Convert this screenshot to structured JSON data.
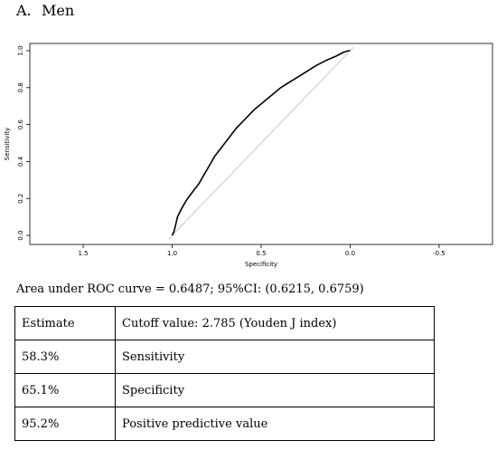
{
  "panel": {
    "letter": "A.",
    "title": "Men"
  },
  "chart_data": {
    "type": "line",
    "xlabel": "Specificity",
    "ylabel": "Sensitivity",
    "xlim": [
      1.8,
      -0.8
    ],
    "ylim": [
      0,
      1
    ],
    "x_ticks": [
      1.5,
      1.0,
      0.5,
      0.0,
      -0.5
    ],
    "x_tick_labels": [
      "1.5",
      "1.0",
      "0.5",
      "0.0",
      "-0.5"
    ],
    "y_ticks": [
      0.0,
      0.2,
      0.4,
      0.6,
      0.8,
      1.0
    ],
    "y_tick_labels": [
      "0.0",
      "0.2",
      "0.4",
      "0.6",
      "0.8",
      "1.0"
    ],
    "grid": false,
    "series": [
      {
        "role": "roc-curve",
        "color": "#000000",
        "specificity": [
          1.0,
          0.99,
          0.98,
          0.97,
          0.95,
          0.92,
          0.89,
          0.85,
          0.82,
          0.79,
          0.76,
          0.72,
          0.68,
          0.64,
          0.59,
          0.54,
          0.49,
          0.44,
          0.39,
          0.34,
          0.29,
          0.24,
          0.19,
          0.13,
          0.08,
          0.04,
          0.01,
          0.0
        ],
        "sensitivity": [
          0.0,
          0.02,
          0.06,
          0.1,
          0.14,
          0.19,
          0.23,
          0.28,
          0.33,
          0.38,
          0.43,
          0.48,
          0.53,
          0.58,
          0.63,
          0.68,
          0.72,
          0.76,
          0.8,
          0.83,
          0.86,
          0.89,
          0.92,
          0.95,
          0.97,
          0.99,
          1.0,
          1.0
        ]
      },
      {
        "role": "reference-diagonal",
        "color": "#bbbbbb",
        "specificity": [
          1.02,
          -0.02
        ],
        "sensitivity": [
          -0.02,
          1.02
        ]
      }
    ]
  },
  "auc_text": "Area under ROC curve = 0.6487; 95%CI: (0.6215, 0.6759)",
  "table": {
    "rows": [
      [
        "Estimate",
        "Cutoff value: 2.785 (Youden J index)"
      ],
      [
        "58.3%",
        "Sensitivity"
      ],
      [
        "65.1%",
        "Specificity"
      ],
      [
        "95.2%",
        "Positive predictive value"
      ]
    ]
  }
}
